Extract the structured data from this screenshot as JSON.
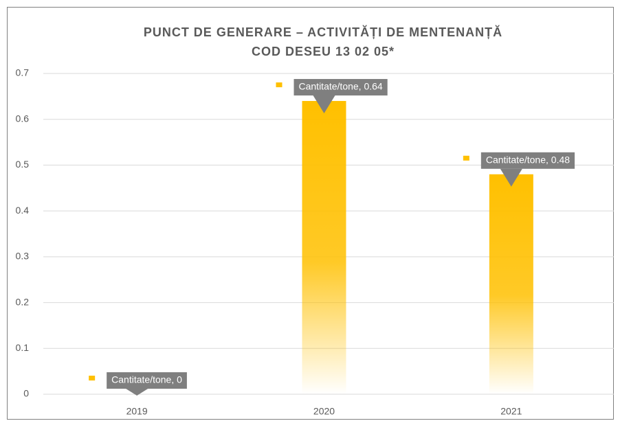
{
  "chart_data": {
    "type": "bar",
    "title": "PUNCT DE GENERARE – ACTIVITĂȚI DE MENTENANȚĂ",
    "subtitle": "COD DESEU 13 02 05*",
    "categories": [
      "2019",
      "2020",
      "2021"
    ],
    "values": [
      0,
      0.64,
      0.48
    ],
    "value_labels": [
      "Cantitate/tone, 0",
      "Cantitate/tone, 0.64",
      "Cantitate/tone, 0.48"
    ],
    "color": "#ffc000",
    "ylim": [
      0,
      0.7
    ],
    "yticks": [
      0,
      0.1,
      0.2,
      0.3,
      0.4,
      0.5,
      0.6,
      0.7
    ],
    "grid": true
  }
}
